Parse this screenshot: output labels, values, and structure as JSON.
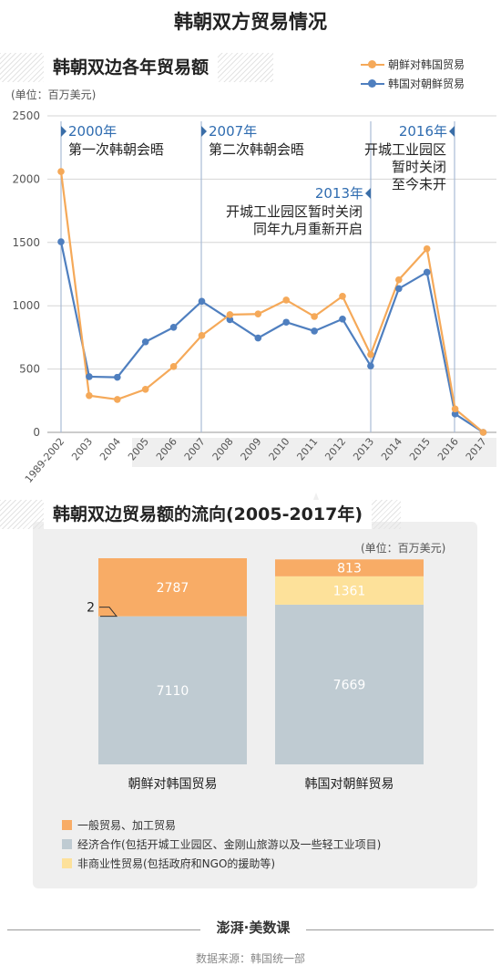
{
  "title": "韩朝双方贸易情况",
  "chart1": {
    "section_title": "韩朝双边各年贸易额",
    "unit": "(单位：百万美元)",
    "colors": {
      "nk_to_sk": "#f5a959",
      "sk_to_nk": "#4f7fbf"
    },
    "events": [
      {
        "year_label": "2000年",
        "desc": [
          "第一次韩朝会晤"
        ]
      },
      {
        "year_label": "2007年",
        "desc": [
          "第二次韩朝会晤"
        ]
      },
      {
        "year_label": "2013年",
        "desc": [
          "开城工业园区暂时关闭",
          "同年九月重新开启"
        ]
      },
      {
        "year_label": "2016年",
        "desc": [
          "开城工业园区",
          "暂时关闭",
          "至今未开"
        ]
      }
    ]
  },
  "chart_data": [
    {
      "type": "line",
      "categories": [
        "1989-2002",
        "2003",
        "2004",
        "2005",
        "2006",
        "2007",
        "2008",
        "2009",
        "2010",
        "2011",
        "2012",
        "2013",
        "2014",
        "2015",
        "2016",
        "2017"
      ],
      "series": [
        {
          "name": "朝鲜对韩国贸易",
          "color": "#f5a959",
          "values": [
            2060,
            290,
            260,
            340,
            520,
            765,
            930,
            935,
            1045,
            915,
            1075,
            615,
            1205,
            1450,
            185,
            0
          ]
        },
        {
          "name": "韩国对朝鲜贸易",
          "color": "#4f7fbf",
          "values": [
            1505,
            440,
            435,
            715,
            830,
            1035,
            890,
            745,
            870,
            800,
            895,
            525,
            1135,
            1265,
            145,
            0
          ]
        }
      ],
      "yticks": [
        0,
        500,
        1000,
        1500,
        2000,
        2500
      ],
      "ylim": [
        0,
        2500
      ],
      "grid": true,
      "legend": "top-right"
    },
    {
      "type": "bar",
      "stacked": true,
      "title": "韩朝双边贸易额的流向(2005-2017年)",
      "unit": "(单位：百万美元)",
      "categories": [
        "朝鲜对韩国贸易",
        "韩国对朝鲜贸易"
      ],
      "series": [
        {
          "name": "经济合作(包括开城工业园区、金刚山旅游以及一些轻工业项目)",
          "color": "#bfcbd2",
          "values": [
            7110,
            7669
          ]
        },
        {
          "name": "非商业性贸易(包括政府和NGO的援助等)",
          "color": "#fde19a",
          "values": [
            2,
            1361
          ]
        },
        {
          "name": "一般贸易、加工贸易",
          "color": "#f8ac66",
          "values": [
            2787,
            813
          ]
        }
      ],
      "legend_order": [
        "一般贸易、加工贸易",
        "经济合作(包括开城工业园区、金刚山旅游以及一些轻工业项目)",
        "非商业性贸易(包括政府和NGO的援助等)"
      ],
      "callout_label": "2"
    }
  ],
  "footer": {
    "logo": "澎湃·美数课",
    "source": "数据来源：韩国统一部"
  }
}
